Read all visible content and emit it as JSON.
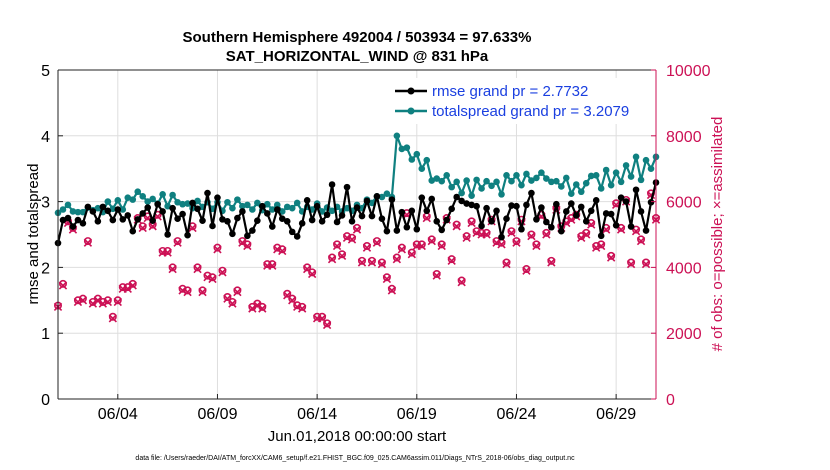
{
  "chart_data": {
    "type": "line",
    "title": "Southern Hemisphere 492004 / 503934 = 97.633%",
    "subtitle": "SAT_HORIZONTAL_WIND @ 831 hPa",
    "xlabel": "Jun.01,2018 00:00:00 start",
    "ylabel": "rmse and totalspread",
    "y2label": "# of obs: o=possible; ×=assimilated",
    "footnote": "data file: /Users/raeder/DAI/ATM_forcXX/CAM6_setup/f.e21.FHIST_BGC.f09_025.CAM6assim.011/Diags_NTrS_2018-06/obs_diag_output.nc",
    "xlim": [
      1.0,
      31.0
    ],
    "ylim": [
      0,
      5
    ],
    "y2lim": [
      0,
      10000
    ],
    "xticks": [
      4,
      9,
      14,
      19,
      24,
      29
    ],
    "xtick_labels": [
      "06/04",
      "06/09",
      "06/14",
      "06/19",
      "06/24",
      "06/29"
    ],
    "yticks": [
      0,
      1,
      2,
      3,
      4,
      5
    ],
    "ytick_labels": [
      "0",
      "1",
      "2",
      "3",
      "4",
      "5"
    ],
    "y2ticks": [
      0,
      2000,
      4000,
      6000,
      8000,
      10000
    ],
    "y2tick_labels": [
      "0",
      "2000",
      "4000",
      "6000",
      "8000",
      "10000"
    ],
    "legend_position": "top-right",
    "colors": {
      "rmse": "#000000",
      "spread": "#0f8080",
      "obs": "#cc1155",
      "legend_text": "#1a3fe0",
      "y2axis": "#cc1155"
    },
    "series": [
      {
        "name": "rmse grand pr = 2.7732",
        "x": [
          1.0,
          1.25,
          1.5,
          1.75,
          2.0,
          2.25,
          2.5,
          2.75,
          3.0,
          3.25,
          3.5,
          3.75,
          4.0,
          4.25,
          4.5,
          4.75,
          5.0,
          5.25,
          5.5,
          5.75,
          6.0,
          6.25,
          6.5,
          6.75,
          7.0,
          7.25,
          7.5,
          7.75,
          8.0,
          8.25,
          8.5,
          8.75,
          9.0,
          9.25,
          9.5,
          9.75,
          10.0,
          10.25,
          10.5,
          10.75,
          11.0,
          11.25,
          11.5,
          11.75,
          12.0,
          12.25,
          12.5,
          12.75,
          13.0,
          13.25,
          13.5,
          13.75,
          14.0,
          14.25,
          14.5,
          14.75,
          15.0,
          15.25,
          15.5,
          15.75,
          16.0,
          16.25,
          16.5,
          16.75,
          17.0,
          17.25,
          17.5,
          17.75,
          18.0,
          18.25,
          18.5,
          18.75,
          19.0,
          19.25,
          19.5,
          19.75,
          20.0,
          20.25,
          20.5,
          20.75,
          21.0,
          21.25,
          21.5,
          21.75,
          22.0,
          22.25,
          22.5,
          22.75,
          23.0,
          23.25,
          23.5,
          23.75,
          24.0,
          24.25,
          24.5,
          24.75,
          25.0,
          25.25,
          25.5,
          25.75,
          26.0,
          26.25,
          26.5,
          26.75,
          27.0,
          27.25,
          27.5,
          27.75,
          28.0,
          28.25,
          28.5,
          28.75,
          29.0,
          29.25,
          29.5,
          29.75,
          30.0,
          30.25,
          30.5,
          30.75,
          31.0
        ],
        "values": [
          2.37,
          2.72,
          2.75,
          2.62,
          2.72,
          2.67,
          2.92,
          2.85,
          2.7,
          2.92,
          2.86,
          2.72,
          2.88,
          2.73,
          2.79,
          2.55,
          2.73,
          2.82,
          2.91,
          2.71,
          2.96,
          2.85,
          2.5,
          2.9,
          2.74,
          2.81,
          2.49,
          2.98,
          2.89,
          2.71,
          3.13,
          2.63,
          3.06,
          2.73,
          2.7,
          2.51,
          2.75,
          2.85,
          2.48,
          2.56,
          2.71,
          2.93,
          2.82,
          2.62,
          2.88,
          2.74,
          2.7,
          2.54,
          2.47,
          2.67,
          3.02,
          2.72,
          2.93,
          2.7,
          2.8,
          3.26,
          2.69,
          2.79,
          3.22,
          2.7,
          2.91,
          2.78,
          3.01,
          2.78,
          3.08,
          2.74,
          2.55,
          3.03,
          2.56,
          2.84,
          2.61,
          2.86,
          2.58,
          3.06,
          2.86,
          3.04,
          2.7,
          2.57,
          2.72,
          2.89,
          3.07,
          3.01,
          2.97,
          2.95,
          2.93,
          2.63,
          2.9,
          2.7,
          2.86,
          2.46,
          2.74,
          2.94,
          2.93,
          2.58,
          2.95,
          3.13,
          2.73,
          2.91,
          2.69,
          2.61,
          2.96,
          2.55,
          2.85,
          2.97,
          2.79,
          2.92,
          2.7,
          2.86,
          3.02,
          2.48,
          2.82,
          2.81,
          2.64,
          3.06,
          3.0,
          2.62,
          3.18,
          2.85,
          2.56,
          2.99,
          3.29
        ],
        "color": "#000000"
      },
      {
        "name": "totalspread grand pr = 3.2079",
        "x": [
          1.0,
          1.25,
          1.5,
          1.75,
          2.0,
          2.25,
          2.5,
          2.75,
          3.0,
          3.25,
          3.5,
          3.75,
          4.0,
          4.25,
          4.5,
          4.75,
          5.0,
          5.25,
          5.5,
          5.75,
          6.0,
          6.25,
          6.5,
          6.75,
          7.0,
          7.25,
          7.5,
          7.75,
          8.0,
          8.25,
          8.5,
          8.75,
          9.0,
          9.25,
          9.5,
          9.75,
          10.0,
          10.25,
          10.5,
          10.75,
          11.0,
          11.25,
          11.5,
          11.75,
          12.0,
          12.25,
          12.5,
          12.75,
          13.0,
          13.25,
          13.5,
          13.75,
          14.0,
          14.25,
          14.5,
          14.75,
          15.0,
          15.25,
          15.5,
          15.75,
          16.0,
          16.25,
          16.5,
          16.75,
          17.0,
          17.25,
          17.5,
          17.75,
          18.0,
          18.25,
          18.5,
          18.75,
          19.0,
          19.25,
          19.5,
          19.75,
          20.0,
          20.25,
          20.5,
          20.75,
          21.0,
          21.25,
          21.5,
          21.75,
          22.0,
          22.25,
          22.5,
          22.75,
          23.0,
          23.25,
          23.5,
          23.75,
          24.0,
          24.25,
          24.5,
          24.75,
          25.0,
          25.25,
          25.5,
          25.75,
          26.0,
          26.25,
          26.5,
          26.75,
          27.0,
          27.25,
          27.5,
          27.75,
          28.0,
          28.25,
          28.5,
          28.75,
          29.0,
          29.25,
          29.5,
          29.75,
          30.0,
          30.25,
          30.5,
          30.75,
          31.0
        ],
        "values": [
          2.83,
          2.88,
          2.95,
          2.85,
          2.84,
          2.84,
          2.91,
          2.87,
          2.9,
          2.84,
          3.0,
          2.89,
          3.02,
          2.88,
          3.06,
          3.03,
          3.15,
          3.08,
          3.0,
          3.04,
          2.97,
          3.11,
          2.93,
          3.1,
          2.99,
          2.96,
          2.97,
          2.9,
          3.01,
          2.92,
          2.99,
          2.89,
          2.99,
          2.86,
          2.99,
          2.9,
          3.03,
          2.93,
          2.95,
          2.88,
          2.98,
          2.87,
          2.96,
          2.88,
          2.95,
          2.85,
          2.92,
          2.9,
          2.98,
          2.85,
          2.92,
          2.88,
          2.97,
          2.85,
          2.91,
          2.86,
          2.92,
          2.85,
          2.9,
          2.86,
          2.95,
          2.9,
          3.03,
          2.98,
          3.08,
          3.07,
          3.12,
          3.07,
          4.0,
          3.8,
          3.82,
          3.64,
          3.72,
          3.5,
          3.63,
          3.32,
          3.35,
          3.31,
          3.4,
          3.22,
          3.3,
          3.13,
          3.32,
          3.09,
          3.33,
          3.2,
          3.31,
          3.24,
          3.3,
          3.11,
          3.4,
          3.31,
          3.4,
          3.25,
          3.42,
          3.32,
          3.36,
          3.44,
          3.35,
          3.3,
          3.31,
          3.23,
          3.36,
          3.12,
          3.26,
          3.15,
          3.28,
          3.39,
          3.4,
          3.2,
          3.48,
          3.25,
          3.44,
          3.3,
          3.55,
          3.38,
          3.68,
          3.33,
          3.63,
          3.5,
          3.68
        ],
        "color": "#0f8080"
      },
      {
        "name": "obs possible",
        "axis": "y2",
        "marker": "o",
        "x": [
          1.0,
          1.25,
          1.5,
          1.75,
          2.0,
          2.25,
          2.5,
          2.75,
          3.0,
          3.25,
          3.5,
          3.75,
          4.0,
          4.25,
          4.5,
          4.75,
          5.0,
          5.25,
          5.5,
          5.75,
          6.0,
          6.25,
          6.5,
          6.75,
          7.0,
          7.25,
          7.5,
          7.75,
          8.0,
          8.25,
          8.5,
          8.75,
          9.0,
          9.25,
          9.5,
          9.75,
          10.0,
          10.25,
          10.5,
          10.75,
          11.0,
          11.25,
          11.5,
          11.75,
          12.0,
          12.25,
          12.5,
          12.75,
          13.0,
          13.25,
          13.5,
          13.75,
          14.0,
          14.25,
          14.5,
          14.75,
          15.0,
          15.25,
          15.5,
          15.75,
          16.0,
          16.25,
          16.5,
          16.75,
          17.0,
          17.25,
          17.5,
          17.75,
          18.0,
          18.25,
          18.5,
          18.75,
          19.0,
          19.25,
          19.5,
          19.75,
          20.0,
          20.25,
          20.5,
          20.75,
          21.0,
          21.25,
          21.5,
          21.75,
          22.0,
          22.25,
          22.5,
          22.75,
          23.0,
          23.25,
          23.5,
          23.75,
          24.0,
          24.25,
          24.5,
          24.75,
          25.0,
          25.25,
          25.5,
          25.75,
          26.0,
          26.25,
          26.5,
          26.75,
          27.0,
          27.25,
          27.5,
          27.75,
          28.0,
          28.25,
          28.5,
          28.75,
          29.0,
          29.25,
          29.5,
          29.75,
          30.0,
          30.25,
          30.5,
          30.75,
          31.0
        ],
        "values": [
          2840,
          3500,
          5400,
          5200,
          3000,
          3050,
          4800,
          2950,
          3050,
          2950,
          3000,
          2500,
          3000,
          3400,
          3400,
          3500,
          5500,
          5250,
          5550,
          5300,
          5600,
          4500,
          4500,
          4000,
          4800,
          3350,
          3300,
          5250,
          4000,
          3300,
          3750,
          3700,
          4600,
          3900,
          3100,
          2950,
          3300,
          4800,
          4700,
          2800,
          2900,
          2800,
          4100,
          4100,
          4600,
          4550,
          3200,
          3050,
          2850,
          2800,
          4000,
          3850,
          2500,
          2500,
          2300,
          4300,
          4700,
          4400,
          4950,
          4900,
          5200,
          4200,
          4650,
          4200,
          4800,
          4150,
          3700,
          3350,
          4300,
          4600,
          5650,
          4450,
          4700,
          4700,
          5550,
          4850,
          3800,
          4700,
          5500,
          4250,
          5300,
          3600,
          4950,
          5400,
          5100,
          5050,
          5050,
          5450,
          4800,
          4750,
          4150,
          5100,
          4800,
          5450,
          3950,
          5000,
          4700,
          5600,
          5050,
          4200,
          5800,
          5250,
          5400,
          5500,
          5600,
          4950,
          5050,
          5350,
          4650,
          4700,
          5200,
          4350,
          5950,
          5200,
          6050,
          4150,
          5150,
          4850,
          4150,
          6250,
          5500
        ],
        "color": "#cc1155"
      },
      {
        "name": "obs assimilated",
        "axis": "y2",
        "marker": "x",
        "x": [
          1.0,
          1.25,
          1.5,
          1.75,
          2.0,
          2.25,
          2.5,
          2.75,
          3.0,
          3.25,
          3.5,
          3.75,
          4.0,
          4.25,
          4.5,
          4.75,
          5.0,
          5.25,
          5.5,
          5.75,
          6.0,
          6.25,
          6.5,
          6.75,
          7.0,
          7.25,
          7.5,
          7.75,
          8.0,
          8.25,
          8.5,
          8.75,
          9.0,
          9.25,
          9.5,
          9.75,
          10.0,
          10.25,
          10.5,
          10.75,
          11.0,
          11.25,
          11.5,
          11.75,
          12.0,
          12.25,
          12.5,
          12.75,
          13.0,
          13.25,
          13.5,
          13.75,
          14.0,
          14.25,
          14.5,
          14.75,
          15.0,
          15.25,
          15.5,
          15.75,
          16.0,
          16.25,
          16.5,
          16.75,
          17.0,
          17.25,
          17.5,
          17.75,
          18.0,
          18.25,
          18.5,
          18.75,
          19.0,
          19.25,
          19.5,
          19.75,
          20.0,
          20.25,
          20.5,
          20.75,
          21.0,
          21.25,
          21.5,
          21.75,
          22.0,
          22.25,
          22.5,
          22.75,
          23.0,
          23.25,
          23.5,
          23.75,
          24.0,
          24.25,
          24.5,
          24.75,
          25.0,
          25.25,
          25.5,
          25.75,
          26.0,
          26.25,
          26.5,
          26.75,
          27.0,
          27.25,
          27.5,
          27.75,
          28.0,
          28.25,
          28.5,
          28.75,
          29.0,
          29.25,
          29.5,
          29.75,
          30.0,
          30.25,
          30.5,
          30.75,
          31.0
        ],
        "values": [
          2800,
          3450,
          5350,
          5150,
          2950,
          3000,
          4750,
          2900,
          3000,
          2900,
          2950,
          2450,
          2950,
          3350,
          3350,
          3450,
          5450,
          5200,
          5500,
          5250,
          5550,
          4450,
          4450,
          3950,
          4750,
          3300,
          3250,
          5200,
          3950,
          3250,
          3700,
          3650,
          4550,
          3850,
          3050,
          2900,
          3250,
          4750,
          4650,
          2750,
          2850,
          2750,
          4050,
          4050,
          4550,
          4500,
          3150,
          3000,
          2800,
          2750,
          3950,
          3800,
          2450,
          2450,
          2250,
          4250,
          4650,
          4350,
          4900,
          4850,
          5150,
          4150,
          4600,
          4150,
          4750,
          4100,
          3650,
          3300,
          4250,
          4550,
          5600,
          4400,
          4650,
          4650,
          5500,
          4800,
          3750,
          4650,
          5450,
          4200,
          5250,
          3550,
          4900,
          5350,
          5050,
          5000,
          5000,
          5400,
          4750,
          4700,
          4100,
          5050,
          4750,
          5400,
          3900,
          4950,
          4650,
          5550,
          5000,
          4150,
          5750,
          5200,
          5350,
          5450,
          5550,
          4900,
          5000,
          5300,
          4600,
          4650,
          5150,
          4300,
          5900,
          5150,
          6000,
          4100,
          5100,
          4800,
          4100,
          6200,
          5450
        ],
        "color": "#cc1155"
      }
    ]
  }
}
